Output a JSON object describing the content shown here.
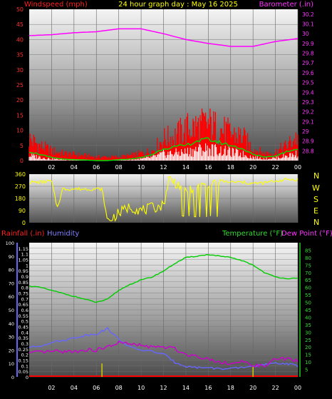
{
  "header": {
    "windspeed_label": "Windspeed (mph)",
    "title": "24 hour graph day : May 16 2025",
    "barometer_label": "Barometer (.in)"
  },
  "mid_header": {
    "rainfall_label": "Rainfall (.in)",
    "humidity_label": "Humidity",
    "temperature_label": "Temperature (°F)",
    "dewpoint_label": "Dew Point (°F)"
  },
  "compass_labels": [
    "N",
    "W",
    "S",
    "E",
    "N"
  ],
  "colors": {
    "wind": "#ff0000",
    "gust_fill": "#ff0000",
    "wind_avg": "#00dd00",
    "wind_low": "#ffffff",
    "barometer": "#ff00ff",
    "direction": "#ffff00",
    "rain": "#ff0000",
    "humidity": "#6666ff",
    "temperature": "#00cc00",
    "dewpoint": "#cc00cc",
    "rain_tick": "#cccc00"
  },
  "chart_data": [
    {
      "type": "line",
      "name": "wind-barometer",
      "x_ticks": [
        "02",
        "04",
        "06",
        "08",
        "10",
        "12",
        "14",
        "16",
        "18",
        "20",
        "22",
        "00"
      ],
      "ylim_wind": [
        0,
        50
      ],
      "wind_ticks": [
        0,
        5,
        10,
        15,
        20,
        25,
        30,
        35,
        40,
        45,
        50
      ],
      "ylim_baro": [
        28.7,
        30.25
      ],
      "baro_ticks": [
        "28.8",
        "28.9",
        "29",
        "29.1",
        "29.2",
        "29.3",
        "29.4",
        "29.5",
        "29.6",
        "29.7",
        "29.8",
        "29.9",
        "30",
        "30.1",
        "30.2"
      ],
      "grid": true,
      "series": [
        {
          "key": "gust",
          "hours": [
            0,
            1,
            2,
            3,
            4,
            5,
            6,
            7,
            8,
            9,
            10,
            11,
            12,
            13,
            14,
            15,
            16,
            17,
            18,
            19,
            20,
            21,
            22,
            23,
            24
          ],
          "values": [
            9,
            6,
            4,
            3,
            2.5,
            2,
            1.5,
            1.5,
            1.5,
            2,
            3,
            4,
            9,
            10,
            13,
            14,
            15,
            13,
            11,
            10,
            5,
            3,
            3.5,
            6,
            10
          ]
        },
        {
          "key": "avg",
          "hours": [
            0,
            1,
            2,
            3,
            4,
            5,
            6,
            7,
            8,
            9,
            10,
            11,
            12,
            13,
            14,
            15,
            16,
            17,
            18,
            19,
            20,
            21,
            22,
            23,
            24
          ],
          "values": [
            3,
            2,
            1,
            0.5,
            0.3,
            0.2,
            0,
            0,
            0.3,
            0.5,
            1,
            2,
            4,
            4.5,
            5,
            6.5,
            7,
            6,
            5,
            4,
            2,
            1.2,
            1.5,
            3,
            4
          ]
        },
        {
          "key": "baro",
          "hours": [
            0,
            2,
            4,
            6,
            8,
            10,
            12,
            14,
            16,
            18,
            20,
            22,
            24
          ],
          "values": [
            29.98,
            29.99,
            30.01,
            30.02,
            30.05,
            30.05,
            30.0,
            29.94,
            29.9,
            29.87,
            29.87,
            29.92,
            29.95
          ]
        }
      ]
    },
    {
      "type": "scatter",
      "name": "wind-direction",
      "ylim": [
        0,
        360
      ],
      "y_ticks": [
        0,
        90,
        180,
        270,
        360
      ],
      "grid": true,
      "series": [
        {
          "key": "direction",
          "hours": [
            0,
            1,
            2,
            2.5,
            3,
            4,
            5,
            6,
            6.5,
            7,
            7.5,
            8,
            9,
            10,
            11,
            12,
            12.5,
            13,
            14,
            15,
            16,
            17,
            18,
            19,
            20,
            21,
            22,
            23,
            24
          ],
          "values": [
            300,
            300,
            310,
            110,
            250,
            250,
            250,
            250,
            250,
            10,
            40,
            70,
            120,
            90,
            110,
            130,
            330,
            300,
            250,
            270,
            300,
            310,
            300,
            300,
            290,
            295,
            310,
            320,
            320
          ]
        }
      ]
    },
    {
      "type": "line",
      "name": "rain-humidity-temperature",
      "ylim_rain": [
        0,
        1.2
      ],
      "rain_ticks": [
        "0",
        "0.05",
        "0.1",
        "0.15",
        "0.2",
        "0.25",
        "0.3",
        "0.35",
        "0.4",
        "0.45",
        "0.5",
        "0.55",
        "0.6",
        "0.65",
        "0.7",
        "0.75",
        "0.8",
        "0.85",
        "0.9",
        "0.95",
        "1",
        "1.05",
        "1.1",
        "1.15"
      ],
      "ylim_humidity": [
        0,
        100
      ],
      "humidity_ticks": [
        0,
        10,
        20,
        30,
        40,
        50,
        60,
        70,
        80,
        90,
        100
      ],
      "ylim_temp": [
        0,
        90
      ],
      "temp_ticks": [
        5,
        10,
        15,
        20,
        25,
        30,
        35,
        40,
        45,
        50,
        55,
        60,
        65,
        70,
        75,
        80,
        85
      ],
      "grid": true,
      "series": [
        {
          "key": "temperature",
          "hours": [
            0,
            1,
            2,
            3,
            4,
            5,
            6,
            7,
            8,
            9,
            10,
            11,
            12,
            13,
            14,
            15,
            16,
            17,
            18,
            19,
            20,
            21,
            22,
            23,
            24
          ],
          "values": [
            61,
            60,
            58,
            56,
            54,
            52,
            50,
            52,
            58,
            62,
            65,
            67,
            71,
            76,
            80,
            81,
            82,
            81,
            80,
            78,
            75,
            70,
            67,
            66,
            66
          ]
        },
        {
          "key": "dewpoint",
          "hours": [
            0,
            1,
            2,
            3,
            4,
            5,
            6,
            7,
            8,
            9,
            10,
            11,
            12,
            13,
            14,
            15,
            16,
            17,
            18,
            19,
            20,
            21,
            22,
            23,
            24
          ],
          "values": [
            16,
            16.5,
            17,
            17,
            17,
            18,
            18,
            20,
            23,
            22,
            21,
            20,
            20,
            19,
            15,
            14,
            12,
            10,
            9,
            10,
            8,
            7,
            12,
            12,
            11
          ]
        },
        {
          "key": "humidity",
          "hours": [
            0,
            1,
            2,
            3,
            4,
            5,
            6,
            7,
            8,
            9,
            10,
            11,
            12,
            13,
            14,
            15,
            16,
            17,
            18,
            19,
            20,
            21,
            22,
            23,
            24
          ],
          "values": [
            22,
            23,
            26,
            27,
            29,
            31,
            32,
            36,
            28,
            22,
            20,
            19,
            17,
            11,
            8,
            7,
            7,
            6,
            6,
            7,
            8,
            9,
            10,
            10,
            8
          ]
        },
        {
          "key": "rain",
          "hours": [
            6.5,
            20
          ],
          "values": [
            0.12,
            0.09
          ]
        }
      ]
    }
  ]
}
